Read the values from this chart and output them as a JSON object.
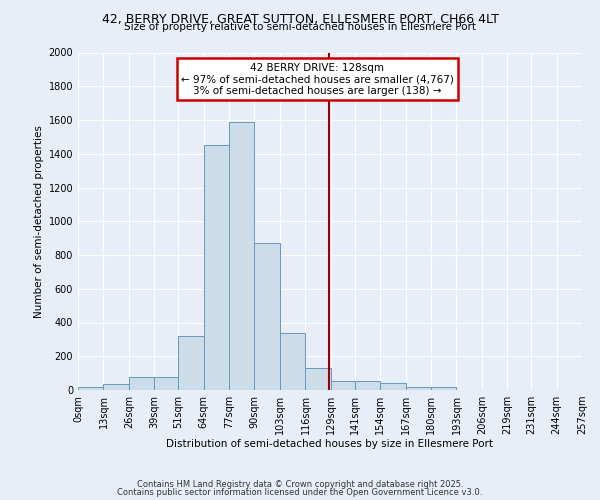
{
  "title_line1": "42, BERRY DRIVE, GREAT SUTTON, ELLESMERE PORT, CH66 4LT",
  "title_line2": "Size of property relative to semi-detached houses in Ellesmere Port",
  "xlabel": "Distribution of semi-detached houses by size in Ellesmere Port",
  "ylabel": "Number of semi-detached properties",
  "footer_line1": "Contains HM Land Registry data © Crown copyright and database right 2025.",
  "footer_line2": "Contains public sector information licensed under the Open Government Licence v3.0.",
  "bin_labels": [
    "0sqm",
    "13sqm",
    "26sqm",
    "39sqm",
    "51sqm",
    "64sqm",
    "77sqm",
    "90sqm",
    "103sqm",
    "116sqm",
    "129sqm",
    "141sqm",
    "154sqm",
    "167sqm",
    "180sqm",
    "193sqm",
    "206sqm",
    "219sqm",
    "231sqm",
    "244sqm",
    "257sqm"
  ],
  "bin_edges": [
    0,
    13,
    26,
    39,
    51,
    64,
    77,
    90,
    103,
    116,
    129,
    141,
    154,
    167,
    180,
    193,
    206,
    219,
    231,
    244,
    257
  ],
  "bar_heights": [
    15,
    35,
    75,
    75,
    320,
    1450,
    1590,
    870,
    340,
    130,
    55,
    55,
    40,
    20,
    15,
    0,
    0,
    0,
    0,
    0
  ],
  "bar_color": "#ccdce8",
  "bar_edge_color": "#6699bb",
  "marker_value": 128,
  "marker_color": "#990000",
  "annotation_title": "42 BERRY DRIVE: 128sqm",
  "annotation_line2": "← 97% of semi-detached houses are smaller (4,767)",
  "annotation_line3": "3% of semi-detached houses are larger (138) →",
  "annotation_box_facecolor": "#ffffff",
  "annotation_box_edgecolor": "#cc0000",
  "ylim": [
    0,
    2000
  ],
  "yticks": [
    0,
    200,
    400,
    600,
    800,
    1000,
    1200,
    1400,
    1600,
    1800,
    2000
  ],
  "background_color": "#e8eef8",
  "plot_background": "#e8eef8",
  "grid_color": "#ffffff"
}
